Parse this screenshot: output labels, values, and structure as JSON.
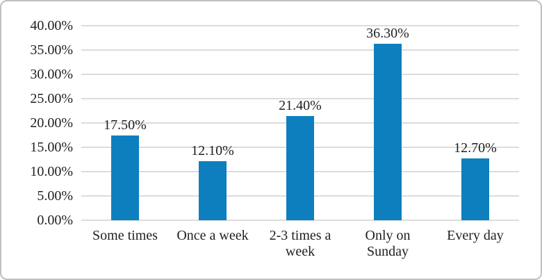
{
  "chart_style": {
    "background": "#ffffff",
    "border_color": "#bfbfbf",
    "text_color": "#1f1f1f",
    "gridline_color": "#dcdcdc",
    "bar_color": "#0e7fbe"
  },
  "chart_data": {
    "type": "bar",
    "title": "",
    "xlabel": "",
    "ylabel": "",
    "categories": [
      "Some times",
      "Once a week",
      "2-3 times a week",
      "Only on Sunday",
      "Every day"
    ],
    "values": [
      17.5,
      12.1,
      21.4,
      36.3,
      12.7
    ],
    "data_labels": [
      "17.50%",
      "12.10%",
      "21.40%",
      "36.30%",
      "12.70%"
    ],
    "y_tick_labels": [
      "40.00%",
      "35.00%",
      "30.00%",
      "25.00%",
      "20.00%",
      "15.00%",
      "10.00%",
      "5.00%",
      "0.00%"
    ],
    "ylim": [
      0,
      40
    ],
    "y_tick_step": 5,
    "grid": true,
    "legend": "none"
  }
}
